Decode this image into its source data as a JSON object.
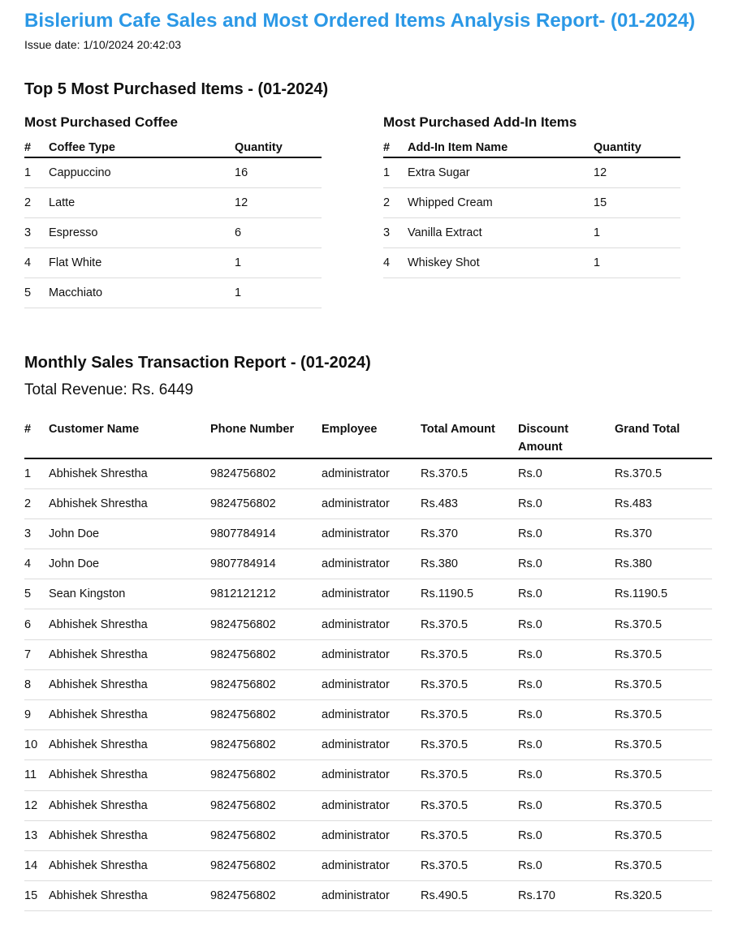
{
  "report": {
    "title": "Bislerium Cafe Sales and Most Ordered Items Analysis Report- (01-2024)",
    "issue_date": "Issue date: 1/10/2024 20:42:03"
  },
  "top_items": {
    "heading": "Top 5 Most Purchased Items - (01-2024)",
    "coffee": {
      "heading": "Most Purchased Coffee",
      "columns": [
        "#",
        "Coffee Type",
        "Quantity"
      ],
      "rows": [
        [
          "1",
          "Cappuccino",
          "16"
        ],
        [
          "2",
          "Latte",
          "12"
        ],
        [
          "3",
          "Espresso",
          "6"
        ],
        [
          "4",
          "Flat White",
          "1"
        ],
        [
          "5",
          "Macchiato",
          "1"
        ]
      ]
    },
    "addins": {
      "heading": "Most Purchased Add-In Items",
      "columns": [
        "#",
        "Add-In Item Name",
        "Quantity"
      ],
      "rows": [
        [
          "1",
          "Extra Sugar",
          "12"
        ],
        [
          "2",
          "Whipped Cream",
          "15"
        ],
        [
          "3",
          "Vanilla Extract",
          "1"
        ],
        [
          "4",
          "Whiskey Shot",
          "1"
        ]
      ]
    }
  },
  "sales": {
    "heading": "Monthly Sales Transaction Report - (01-2024)",
    "total_revenue": "Total Revenue: Rs. 6449",
    "columns": [
      "#",
      "Customer Name",
      "Phone Number",
      "Employee",
      "Total Amount",
      "Discount Amount",
      "Grand Total"
    ],
    "rows": [
      [
        "1",
        "Abhishek Shrestha",
        "9824756802",
        "administrator",
        "Rs.370.5",
        "Rs.0",
        "Rs.370.5"
      ],
      [
        "2",
        "Abhishek Shrestha",
        "9824756802",
        "administrator",
        "Rs.483",
        "Rs.0",
        "Rs.483"
      ],
      [
        "3",
        "John Doe",
        "9807784914",
        "administrator",
        "Rs.370",
        "Rs.0",
        "Rs.370"
      ],
      [
        "4",
        "John Doe",
        "9807784914",
        "administrator",
        "Rs.380",
        "Rs.0",
        "Rs.380"
      ],
      [
        "5",
        "Sean Kingston",
        "9812121212",
        "administrator",
        "Rs.1190.5",
        "Rs.0",
        "Rs.1190.5"
      ],
      [
        "6",
        "Abhishek Shrestha",
        "9824756802",
        "administrator",
        "Rs.370.5",
        "Rs.0",
        "Rs.370.5"
      ],
      [
        "7",
        "Abhishek Shrestha",
        "9824756802",
        "administrator",
        "Rs.370.5",
        "Rs.0",
        "Rs.370.5"
      ],
      [
        "8",
        "Abhishek Shrestha",
        "9824756802",
        "administrator",
        "Rs.370.5",
        "Rs.0",
        "Rs.370.5"
      ],
      [
        "9",
        "Abhishek Shrestha",
        "9824756802",
        "administrator",
        "Rs.370.5",
        "Rs.0",
        "Rs.370.5"
      ],
      [
        "10",
        "Abhishek Shrestha",
        "9824756802",
        "administrator",
        "Rs.370.5",
        "Rs.0",
        "Rs.370.5"
      ],
      [
        "11",
        "Abhishek Shrestha",
        "9824756802",
        "administrator",
        "Rs.370.5",
        "Rs.0",
        "Rs.370.5"
      ],
      [
        "12",
        "Abhishek Shrestha",
        "9824756802",
        "administrator",
        "Rs.370.5",
        "Rs.0",
        "Rs.370.5"
      ],
      [
        "13",
        "Abhishek Shrestha",
        "9824756802",
        "administrator",
        "Rs.370.5",
        "Rs.0",
        "Rs.370.5"
      ],
      [
        "14",
        "Abhishek Shrestha",
        "9824756802",
        "administrator",
        "Rs.370.5",
        "Rs.0",
        "Rs.370.5"
      ],
      [
        "15",
        "Abhishek Shrestha",
        "9824756802",
        "administrator",
        "Rs.490.5",
        "Rs.170",
        "Rs.320.5"
      ]
    ]
  },
  "colors": {
    "title": "#2b98e6",
    "text": "#111111",
    "rule": "#dcdcdc"
  }
}
